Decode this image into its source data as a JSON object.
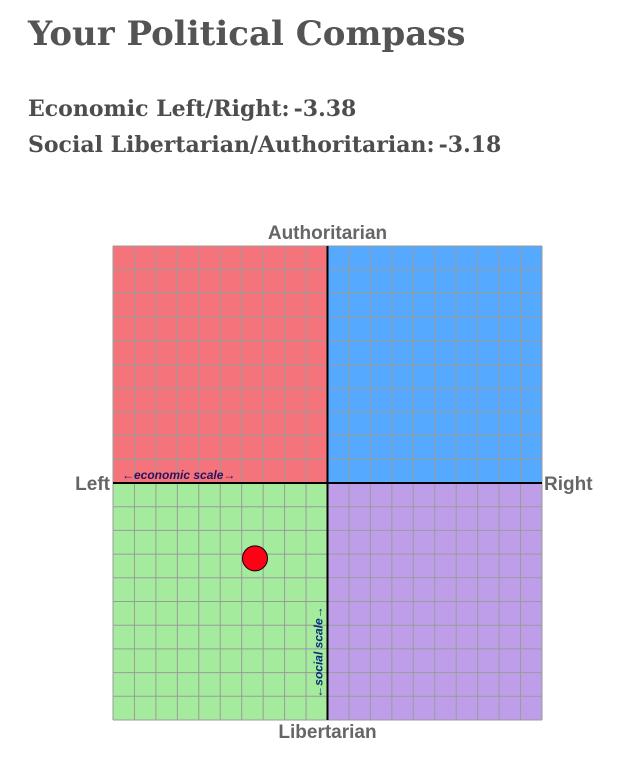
{
  "page": {
    "title": "Your Political Compass",
    "economic": {
      "label": "Economic Left/Right:",
      "value": "-3.38"
    },
    "social": {
      "label": "Social Libertarian/Authoritarian:",
      "value": "-3.18"
    }
  },
  "chart_data": {
    "type": "scatter",
    "title": "",
    "xlabel": "",
    "ylabel": "",
    "xlim": [
      -10,
      10
    ],
    "ylim": [
      -10,
      10
    ],
    "grid": true,
    "axis_labels": {
      "top": "Authoritarian",
      "bottom": "Libertarian",
      "left": "Left",
      "right": "Right"
    },
    "scale_labels": {
      "economic": "←economic scale→",
      "social": "←social scale→"
    },
    "quadrant_colors": {
      "authoritarian_left": "#f5737a",
      "authoritarian_right": "#55aaff",
      "libertarian_left": "#a5eb9d",
      "libertarian_right": "#be9ee9"
    },
    "grid_color": "#9b9b9b",
    "axis_color": "#000000",
    "points": [
      {
        "x": -3.38,
        "y": -3.18,
        "color": "#ff0014"
      }
    ]
  }
}
